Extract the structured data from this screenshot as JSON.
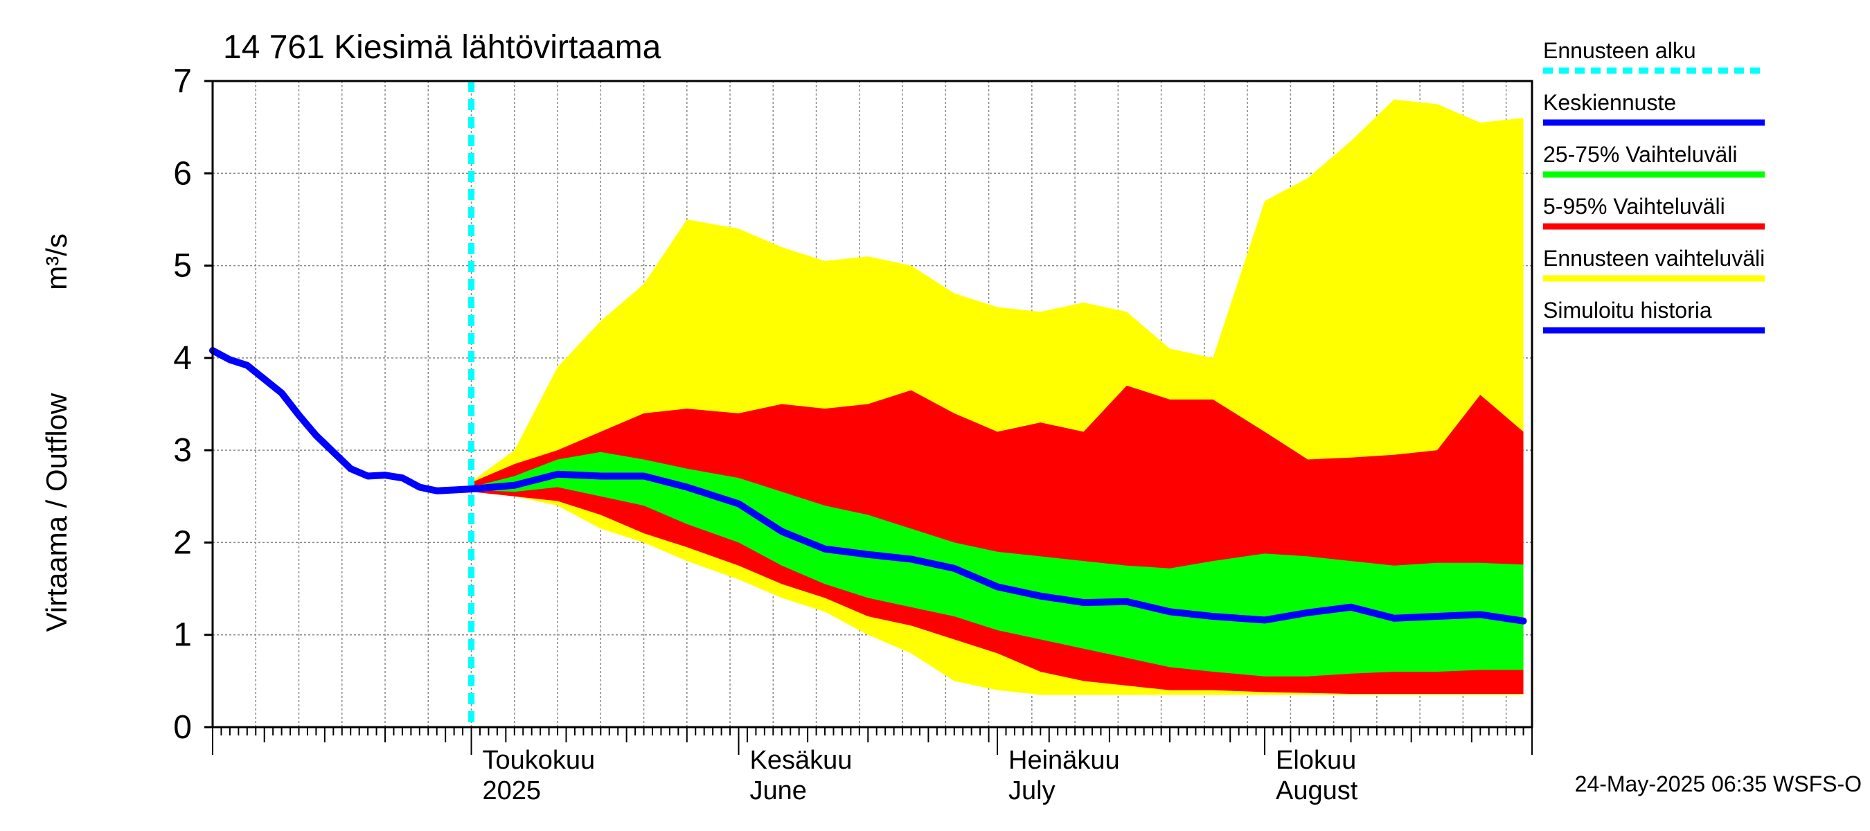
{
  "chart_data": {
    "type": "area",
    "title": "14 761 Kiesimä lähtövirtaama",
    "ylabel": "Virtaama / Outflow",
    "yunit": "m³/s",
    "xlim": [
      "2025-04-01",
      "2025-08-31"
    ],
    "ylim": [
      0,
      7
    ],
    "yticks": [
      0,
      1,
      2,
      3,
      4,
      5,
      6,
      7
    ],
    "grid": true,
    "legend_position": "right",
    "forecast_start": "2025-05-01",
    "month_labels": [
      {
        "date": "2025-05-01",
        "line1": "Toukokuu",
        "line2": "2025"
      },
      {
        "date": "2025-06-01",
        "line1": "Kesäkuu",
        "line2": "June"
      },
      {
        "date": "2025-07-01",
        "line1": "Heinäkuu",
        "line2": "July"
      },
      {
        "date": "2025-08-01",
        "line1": "Elokuu",
        "line2": "August"
      }
    ],
    "timestamp": "24-May-2025 06:35 WSFS-O",
    "legend": [
      {
        "label": "Ennusteen alku",
        "color": "#00ffff",
        "style": "dashed"
      },
      {
        "label": "Keskiennuste",
        "color": "#0000ff",
        "style": "solid"
      },
      {
        "label": "25-75% Vaihteluväli",
        "color": "#00ff00",
        "style": "solid"
      },
      {
        "label": "5-95% Vaihteluväli",
        "color": "#ff0000",
        "style": "solid"
      },
      {
        "label": "Ennusteen vaihteluväli",
        "color": "#ffff00",
        "style": "solid"
      },
      {
        "label": "Simuloitu historia",
        "color": "#0000ff",
        "style": "solid"
      }
    ],
    "colors": {
      "grid": "#888888",
      "axis": "#000000"
    },
    "series": {
      "history": {
        "name": "Simuloitu historia",
        "x": [
          "2025-04-01",
          "2025-04-03",
          "2025-04-05",
          "2025-04-07",
          "2025-04-09",
          "2025-04-11",
          "2025-04-13",
          "2025-04-15",
          "2025-04-17",
          "2025-04-19",
          "2025-04-21",
          "2025-04-23",
          "2025-04-25",
          "2025-04-27",
          "2025-04-29",
          "2025-05-01"
        ],
        "y": [
          4.08,
          3.98,
          3.92,
          3.77,
          3.62,
          3.38,
          3.16,
          2.98,
          2.8,
          2.72,
          2.73,
          2.7,
          2.6,
          2.56,
          2.57,
          2.58
        ]
      },
      "median": {
        "name": "Keskiennuste",
        "x": [
          "2025-05-01",
          "2025-05-06",
          "2025-05-11",
          "2025-05-16",
          "2025-05-21",
          "2025-05-26",
          "2025-06-01",
          "2025-06-06",
          "2025-06-11",
          "2025-06-16",
          "2025-06-21",
          "2025-06-26",
          "2025-07-01",
          "2025-07-06",
          "2025-07-11",
          "2025-07-16",
          "2025-07-21",
          "2025-07-26",
          "2025-08-01",
          "2025-08-06",
          "2025-08-11",
          "2025-08-16",
          "2025-08-21",
          "2025-08-26",
          "2025-08-31"
        ],
        "y": [
          2.58,
          2.62,
          2.74,
          2.72,
          2.72,
          2.6,
          2.42,
          2.12,
          1.93,
          1.87,
          1.82,
          1.72,
          1.52,
          1.42,
          1.35,
          1.36,
          1.25,
          1.2,
          1.16,
          1.24,
          1.3,
          1.18,
          1.2,
          1.22,
          1.15
        ]
      },
      "bands": {
        "x": [
          "2025-05-01",
          "2025-05-06",
          "2025-05-11",
          "2025-05-16",
          "2025-05-21",
          "2025-05-26",
          "2025-06-01",
          "2025-06-06",
          "2025-06-11",
          "2025-06-16",
          "2025-06-21",
          "2025-06-26",
          "2025-07-01",
          "2025-07-06",
          "2025-07-11",
          "2025-07-16",
          "2025-07-21",
          "2025-07-26",
          "2025-08-01",
          "2025-08-06",
          "2025-08-11",
          "2025-08-16",
          "2025-08-21",
          "2025-08-26",
          "2025-08-31"
        ],
        "min": [
          2.55,
          2.5,
          2.4,
          2.15,
          2.0,
          1.8,
          1.6,
          1.4,
          1.25,
          1.0,
          0.8,
          0.5,
          0.4,
          0.35,
          0.35,
          0.35,
          0.35,
          0.35,
          0.35,
          0.35,
          0.35,
          0.35,
          0.35,
          0.35,
          0.35
        ],
        "p5": [
          2.55,
          2.5,
          2.45,
          2.3,
          2.1,
          1.95,
          1.75,
          1.55,
          1.4,
          1.2,
          1.1,
          0.95,
          0.8,
          0.6,
          0.5,
          0.45,
          0.4,
          0.4,
          0.38,
          0.37,
          0.36,
          0.36,
          0.36,
          0.36,
          0.36
        ],
        "p25": [
          2.57,
          2.55,
          2.6,
          2.5,
          2.4,
          2.2,
          2.0,
          1.75,
          1.55,
          1.4,
          1.3,
          1.2,
          1.05,
          0.95,
          0.85,
          0.75,
          0.65,
          0.6,
          0.55,
          0.55,
          0.58,
          0.6,
          0.6,
          0.62,
          0.62
        ],
        "p75": [
          2.6,
          2.72,
          2.9,
          2.98,
          2.9,
          2.8,
          2.7,
          2.55,
          2.4,
          2.3,
          2.15,
          2.0,
          1.9,
          1.85,
          1.8,
          1.75,
          1.72,
          1.8,
          1.88,
          1.85,
          1.8,
          1.75,
          1.78,
          1.78,
          1.76
        ],
        "p95": [
          2.65,
          2.85,
          3.0,
          3.2,
          3.4,
          3.45,
          3.4,
          3.5,
          3.45,
          3.5,
          3.65,
          3.4,
          3.2,
          3.3,
          3.2,
          3.7,
          3.55,
          3.55,
          3.2,
          2.9,
          2.92,
          2.95,
          3.0,
          3.6,
          3.2
        ],
        "max": [
          2.66,
          3.0,
          3.9,
          4.4,
          4.8,
          5.5,
          5.4,
          5.2,
          5.05,
          5.1,
          5.0,
          4.7,
          4.55,
          4.5,
          4.6,
          4.5,
          4.1,
          4.0,
          5.7,
          5.95,
          6.35,
          6.8,
          6.75,
          6.55,
          6.6
        ]
      }
    }
  }
}
